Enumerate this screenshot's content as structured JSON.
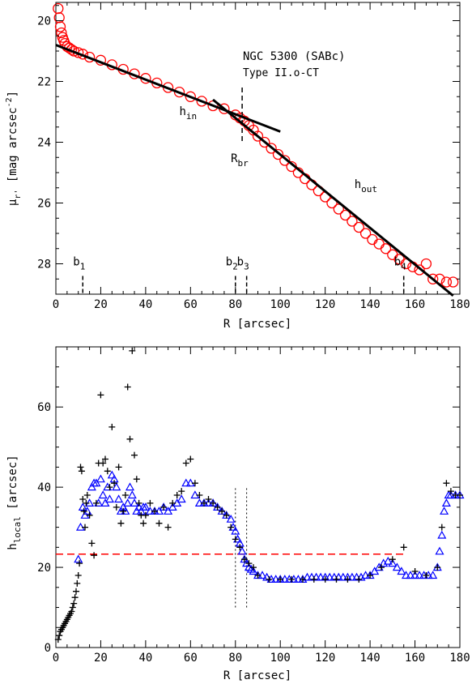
{
  "chart_data": [
    {
      "type": "scatter",
      "title": "NGC 5300 (SABc)",
      "subtitle": "Type II.o-CT",
      "xlabel": "R [arcsec]",
      "ylabel_main": "μ",
      "ylabel_sub": "r'",
      "ylabel_rest": " [mag arcsec",
      "ylabel_exp": "-2",
      "ylabel_close": "]",
      "xlim": [
        0,
        180
      ],
      "ylim": [
        29,
        19.4
      ],
      "y_inverted": true,
      "xticks": [
        0,
        20,
        40,
        60,
        80,
        100,
        120,
        140,
        160,
        180
      ],
      "yticks": [
        20,
        22,
        24,
        26,
        28
      ],
      "grid": false,
      "profile": {
        "name": "",
        "marker": "circle",
        "color": "#ff0000",
        "x": [
          1,
          1.5,
          2,
          2.5,
          3,
          3.5,
          4,
          5,
          6,
          7,
          8,
          10,
          12,
          15,
          20,
          25,
          30,
          35,
          40,
          45,
          50,
          55,
          60,
          65,
          70,
          75,
          80,
          82,
          84,
          86,
          88,
          90,
          93,
          96,
          99,
          102,
          105,
          108,
          111,
          114,
          117,
          120,
          123,
          126,
          129,
          132,
          135,
          138,
          141,
          144,
          147,
          150,
          153,
          156,
          159,
          162,
          165,
          168,
          171,
          174,
          177
        ],
        "y": [
          19.6,
          19.9,
          20.2,
          20.4,
          20.55,
          20.65,
          20.75,
          20.85,
          20.9,
          20.95,
          21.0,
          21.05,
          21.1,
          21.2,
          21.3,
          21.45,
          21.6,
          21.75,
          21.9,
          22.05,
          22.2,
          22.35,
          22.5,
          22.65,
          22.8,
          22.9,
          23.1,
          23.2,
          23.3,
          23.45,
          23.6,
          23.8,
          24.0,
          24.2,
          24.4,
          24.6,
          24.8,
          25.0,
          25.2,
          25.4,
          25.6,
          25.8,
          26.0,
          26.2,
          26.4,
          26.6,
          26.8,
          27.0,
          27.2,
          27.35,
          27.5,
          27.7,
          27.85,
          28.0,
          28.1,
          28.2,
          28.0,
          28.5,
          28.5,
          28.6,
          28.6
        ]
      },
      "fits": [
        {
          "label": "h",
          "label_sub": "in",
          "x": [
            0,
            100
          ],
          "y": [
            20.8,
            23.65
          ]
        },
        {
          "label": "h",
          "label_sub": "out",
          "x": [
            70,
            177
          ],
          "y": [
            22.6,
            29.05
          ]
        }
      ],
      "break": {
        "label": "R",
        "label_sub": "br",
        "x": 83,
        "yrange": [
          22.2,
          24.0
        ]
      },
      "markers": [
        {
          "label": "b",
          "label_sub": "1",
          "x": 12
        },
        {
          "label": "b",
          "label_sub": "2",
          "x": 80
        },
        {
          "label": "b",
          "label_sub": "3",
          "x": 85
        },
        {
          "label": "b",
          "label_sub": "4",
          "x": 155
        }
      ]
    },
    {
      "type": "scatter",
      "title": "",
      "xlabel": "R [arcsec]",
      "ylabel_main": "h",
      "ylabel_sub": "local",
      "ylabel_rest": " [arcsec]",
      "xlim": [
        0,
        180
      ],
      "ylim": [
        0,
        75
      ],
      "xticks": [
        0,
        20,
        40,
        60,
        80,
        100,
        120,
        140,
        160,
        180
      ],
      "yticks": [
        0,
        20,
        40,
        60
      ],
      "grid": false,
      "hline": {
        "y": 23.3,
        "x": [
          0,
          155
        ],
        "color": "#ff0000",
        "style": "dashed"
      },
      "vlines": [
        {
          "x": 80,
          "y": [
            10,
            40
          ],
          "style": "dotted"
        },
        {
          "x": 85,
          "y": [
            10,
            40
          ],
          "style": "dotted"
        }
      ],
      "series": [
        {
          "name": "",
          "marker": "plus",
          "color": "#000000",
          "x": [
            1,
            1.5,
            2,
            2.5,
            3,
            3.5,
            4,
            4.5,
            5,
            5.5,
            6,
            6.5,
            7,
            7.5,
            8,
            8.5,
            9,
            9.5,
            10,
            10.5,
            11,
            11.5,
            12,
            12.5,
            13,
            13.5,
            14,
            15,
            16,
            17,
            18,
            19,
            20,
            21,
            22,
            23,
            24,
            25,
            26,
            27,
            28,
            29,
            30,
            31,
            32,
            33,
            34,
            35,
            36,
            37,
            38,
            39,
            40,
            42,
            44,
            46,
            48,
            50,
            52,
            54,
            56,
            58,
            60,
            62,
            64,
            66,
            68,
            70,
            72,
            74,
            76,
            78,
            80,
            82,
            84,
            86,
            88,
            90,
            95,
            100,
            105,
            110,
            115,
            120,
            125,
            130,
            135,
            140,
            145,
            150,
            155,
            160,
            165,
            170,
            172,
            174,
            176,
            178,
            180
          ],
          "y": [
            2,
            3,
            4,
            4.5,
            5,
            5.5,
            6,
            6.5,
            7,
            7.5,
            8,
            8.5,
            9,
            10,
            11,
            12.5,
            14,
            16,
            18,
            21,
            45,
            44,
            37,
            34,
            30,
            36,
            38,
            33,
            26,
            23,
            36,
            46,
            63,
            46,
            47,
            44,
            40,
            55,
            41,
            35,
            45,
            31,
            34,
            38,
            65,
            52,
            74,
            48,
            42,
            36,
            33,
            31,
            33,
            36,
            34,
            31,
            35,
            30,
            36,
            38,
            39,
            46,
            47,
            41,
            38,
            36,
            37,
            36,
            35,
            34,
            33,
            30,
            27,
            25,
            22,
            21,
            20,
            18,
            17,
            17,
            17,
            17,
            17,
            17,
            17,
            17,
            17,
            18,
            20,
            22,
            25,
            19,
            18,
            20,
            30,
            41,
            39,
            38,
            38
          ]
        },
        {
          "name": "",
          "marker": "triangle",
          "color": "#0000ff",
          "x": [
            10,
            11,
            12,
            13,
            14,
            15,
            16,
            17,
            18,
            19,
            20,
            21,
            22,
            23,
            24,
            25,
            26,
            27,
            28,
            29,
            30,
            31,
            32,
            33,
            34,
            35,
            36,
            37,
            38,
            39,
            40,
            42,
            44,
            46,
            48,
            50,
            52,
            54,
            56,
            58,
            60,
            62,
            64,
            66,
            68,
            70,
            72,
            74,
            76,
            78,
            79,
            80,
            81,
            82,
            83,
            84,
            85,
            86,
            87,
            88,
            90,
            92,
            94,
            96,
            98,
            100,
            102,
            104,
            106,
            108,
            110,
            112,
            114,
            116,
            118,
            120,
            122,
            124,
            126,
            128,
            130,
            132,
            134,
            136,
            138,
            140,
            142,
            144,
            146,
            148,
            150,
            152,
            154,
            156,
            158,
            160,
            162,
            164,
            166,
            168,
            170,
            171,
            172,
            173,
            174,
            175,
            176,
            178,
            180
          ],
          "y": [
            22,
            30,
            35,
            33,
            34,
            36,
            40,
            41,
            41,
            36,
            42,
            38,
            36,
            40,
            37,
            43,
            42,
            40,
            37,
            34,
            35,
            34,
            36,
            40,
            38,
            36,
            34,
            35,
            34,
            35,
            35,
            34,
            34,
            34,
            35,
            34,
            35,
            36,
            37,
            41,
            41,
            38,
            36,
            36,
            36,
            36,
            35,
            34,
            33,
            32,
            30,
            29,
            27,
            26,
            24,
            22,
            21,
            20,
            19.5,
            19,
            18,
            18,
            17.5,
            17,
            17,
            17,
            17,
            17,
            17,
            17,
            17,
            17.5,
            17.5,
            17.5,
            17.5,
            17.5,
            17.5,
            17.5,
            17.5,
            17.5,
            17.5,
            17.5,
            17.5,
            17.5,
            18,
            18,
            19,
            20,
            21,
            21.5,
            21,
            20,
            19,
            18,
            18,
            18,
            18,
            18,
            18,
            18,
            20,
            24,
            28,
            34,
            36,
            38,
            38,
            38,
            38
          ]
        }
      ]
    }
  ]
}
